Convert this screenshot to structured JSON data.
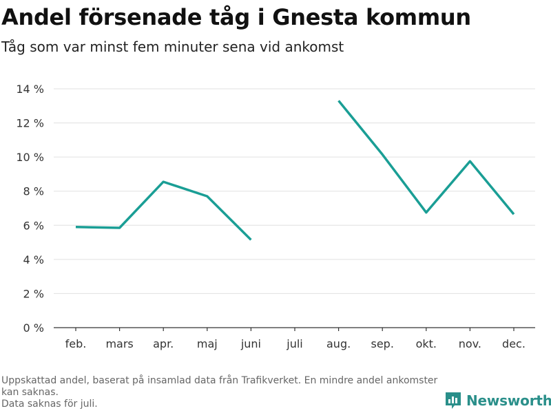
{
  "header": {
    "title": "Andel försenade tåg i Gnesta kommun",
    "subtitle": "Tåg som var minst fem minuter sena vid ankomst"
  },
  "chart_data": {
    "type": "line",
    "title": "Andel försenade tåg i Gnesta kommun",
    "subtitle": "Tåg som var minst fem minuter sena vid ankomst",
    "categories": [
      "feb.",
      "mars",
      "apr.",
      "maj",
      "juni",
      "juli",
      "aug.",
      "sep.",
      "okt.",
      "nov.",
      "dec."
    ],
    "series": [
      {
        "values": [
          5.9,
          5.85,
          8.55,
          7.7,
          5.15,
          null,
          13.3,
          10.15,
          6.75,
          9.75,
          6.65
        ],
        "color": "#1a9e95"
      }
    ],
    "yticks": [
      "0 %",
      "2 %",
      "4 %",
      "6 %",
      "8 %",
      "10 %",
      "12 %",
      "14 %"
    ],
    "ytick_values": [
      0,
      2,
      4,
      6,
      8,
      10,
      12,
      14
    ],
    "ylim": [
      0,
      14
    ],
    "xlabel": "",
    "ylabel": "",
    "grid": true,
    "legend": "none",
    "gridColor": "#e0e0e0",
    "axisColor": "#333333"
  },
  "footer": {
    "note_line1": "Uppskattad andel, baserat på insamlad data från Trafikverket. En mindre andel ankomster kan saknas.",
    "note_line2": "Data saknas för juli.",
    "brand": "Newsworthy",
    "brand_icon": "newsworthy-logo-icon",
    "brand_color": "#2a8f8a"
  }
}
